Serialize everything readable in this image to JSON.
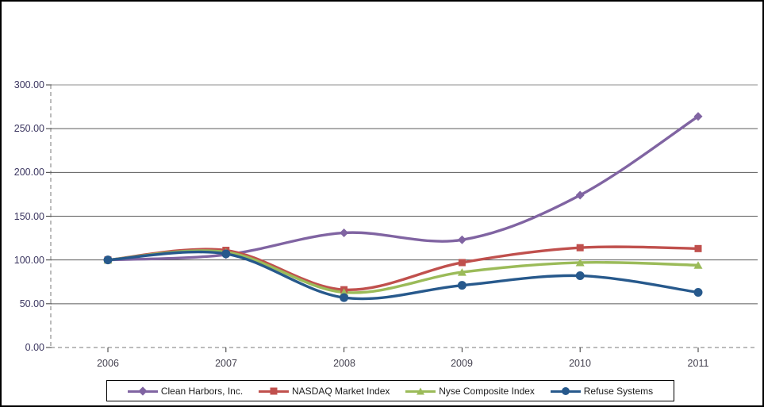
{
  "chart_data": {
    "type": "line",
    "title": "",
    "xlabel": "",
    "ylabel": "",
    "x_categories": [
      "2006",
      "2007",
      "2008",
      "2009",
      "2010",
      "2011"
    ],
    "y_tick_labels": [
      "300.00",
      "250.00",
      "200.00",
      "150.00",
      "100.00",
      "50.00",
      "0.00"
    ],
    "y_tick_values": [
      300,
      250,
      200,
      150,
      100,
      50,
      0
    ],
    "ylim": [
      0,
      300
    ],
    "grid": true,
    "line_style": "smooth",
    "legend_position": "bottom-boxed",
    "series": [
      {
        "name": "Clean Harbors, Inc.",
        "color": "#8064A2",
        "marker": "diamond",
        "values": [
          100.0,
          106.0,
          131.0,
          123.0,
          174.0,
          264.0
        ]
      },
      {
        "name": "NASDAQ Market Index",
        "color": "#C0504D",
        "marker": "square",
        "values": [
          100.0,
          111.0,
          66.0,
          97.0,
          114.0,
          113.0
        ]
      },
      {
        "name": "Nyse Composite Index",
        "color": "#9BBB59",
        "marker": "triangle",
        "values": [
          100.0,
          109.0,
          63.0,
          86.0,
          97.0,
          94.0
        ]
      },
      {
        "name": "Refuse Systems",
        "color": "#27598C",
        "marker": "circle",
        "values": [
          100.0,
          107.0,
          57.0,
          71.0,
          82.0,
          63.0
        ]
      }
    ],
    "colors": {
      "gridline": "#5a5a5a",
      "top_gridline": "#8c8c8c",
      "axis_dash": "#7a7a7a",
      "tick": "#333333"
    }
  }
}
